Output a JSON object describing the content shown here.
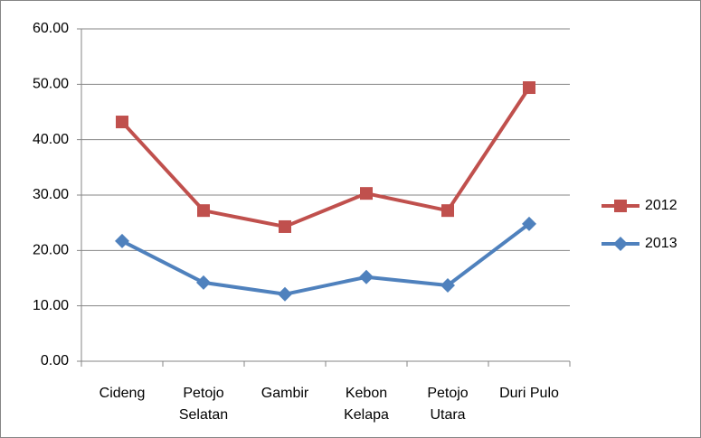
{
  "chart_data": {
    "type": "line",
    "categories": [
      "Cideng",
      "Petojo\nSelatan",
      "Gambir",
      "Kebon\nKelapa",
      "Petojo\nUtara",
      "Duri Pulo"
    ],
    "series": [
      {
        "name": "2012",
        "color": "#c0504d",
        "marker": "square",
        "values": [
          43.2,
          27.2,
          24.3,
          30.3,
          27.2,
          49.4
        ]
      },
      {
        "name": "2013",
        "color": "#4f81bd",
        "marker": "diamond",
        "values": [
          21.7,
          14.2,
          12.1,
          15.2,
          13.7,
          24.8
        ]
      }
    ],
    "ylim": [
      0,
      60
    ],
    "yticks": [
      {
        "value": 0,
        "label": "0.00"
      },
      {
        "value": 10,
        "label": "10.00"
      },
      {
        "value": 20,
        "label": "20.00"
      },
      {
        "value": 30,
        "label": "30.00"
      },
      {
        "value": 40,
        "label": "40.00"
      },
      {
        "value": 50,
        "label": "50.00"
      },
      {
        "value": 60,
        "label": "60.00"
      }
    ],
    "grid": true,
    "legend": "right"
  }
}
